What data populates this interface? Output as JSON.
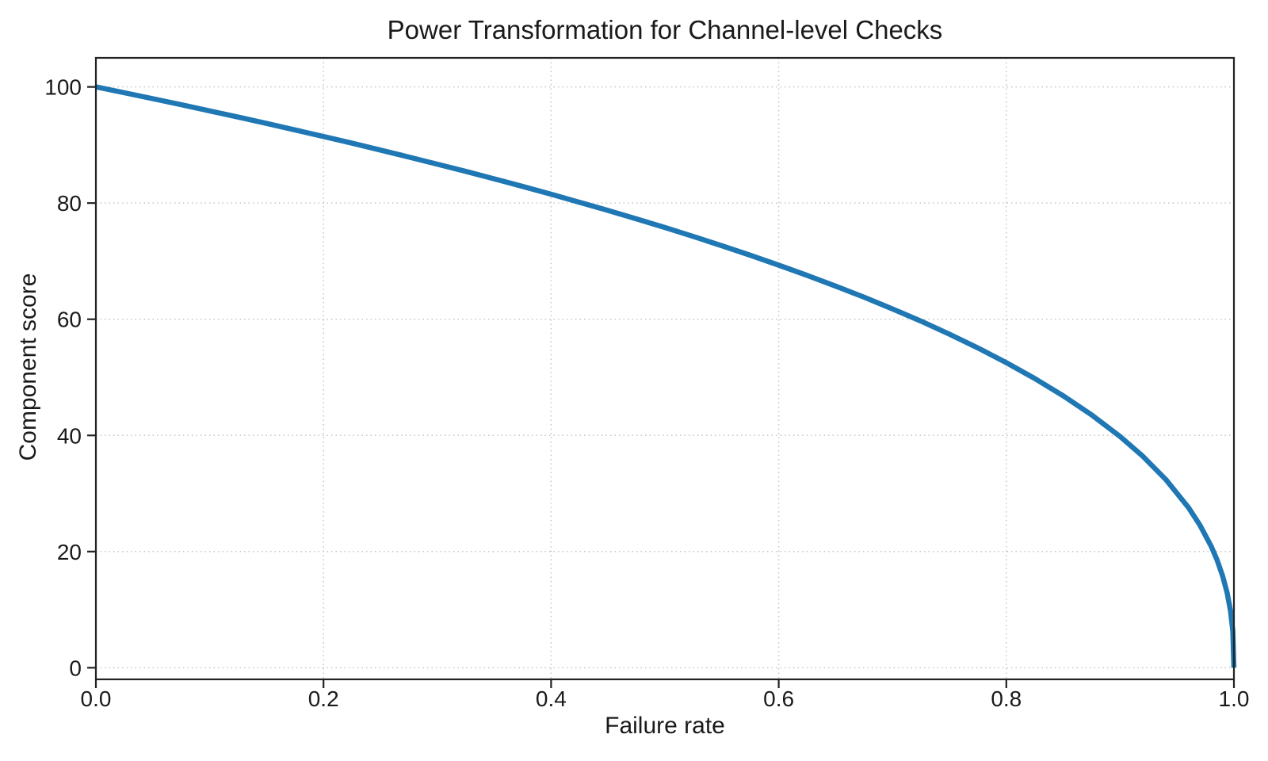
{
  "colors": {
    "background": "#ffffff",
    "text": "#1a1a1a",
    "axis": "#222222",
    "grid": "#c6c6c6",
    "line": "#1f77b4"
  },
  "chart_data": {
    "type": "line",
    "title": "Power Transformation for Channel-level Checks",
    "xlabel": "Failure rate",
    "ylabel": "Component score",
    "xlim": [
      0.0,
      1.0
    ],
    "ylim": [
      -2,
      105
    ],
    "xticks": [
      0.0,
      0.2,
      0.4,
      0.6,
      0.8,
      1.0
    ],
    "xtick_labels": [
      "0.0",
      "0.2",
      "0.4",
      "0.6",
      "0.8",
      "1.0"
    ],
    "yticks": [
      0,
      20,
      40,
      60,
      80,
      100
    ],
    "ytick_labels": [
      "0",
      "20",
      "40",
      "60",
      "80",
      "100"
    ],
    "grid": {
      "visible": true,
      "style": "dotted",
      "color": "#c6c6c6"
    },
    "legend": {
      "visible": false
    },
    "series": [
      {
        "name": "curve",
        "color": "#1f77b4",
        "line_width": 6.5,
        "x": [
          0,
          0.025,
          0.05,
          0.075,
          0.1,
          0.125,
          0.15,
          0.175,
          0.2,
          0.225,
          0.25,
          0.275,
          0.3,
          0.325,
          0.35,
          0.375,
          0.4,
          0.425,
          0.45,
          0.475,
          0.5,
          0.525,
          0.55,
          0.575,
          0.6,
          0.625,
          0.65,
          0.675,
          0.7,
          0.725,
          0.75,
          0.775,
          0.8,
          0.825,
          0.85,
          0.875,
          0.9,
          0.92,
          0.94,
          0.96,
          0.97,
          0.98,
          0.985,
          0.99,
          0.994,
          0.997,
          0.999,
          1.0
        ],
        "y": [
          100,
          98.99,
          97.97,
          96.93,
          95.87,
          94.8,
          93.71,
          92.59,
          91.46,
          90.31,
          89.13,
          87.93,
          86.7,
          85.45,
          84.17,
          82.86,
          81.52,
          80.14,
          78.73,
          77.28,
          75.79,
          74.25,
          72.66,
          71.02,
          69.31,
          67.55,
          65.71,
          63.79,
          61.78,
          59.67,
          57.43,
          55.06,
          52.53,
          49.8,
          46.82,
          43.53,
          39.81,
          36.41,
          32.45,
          27.59,
          24.6,
          20.91,
          18.64,
          15.85,
          12.92,
          9.79,
          6.31,
          0
        ]
      }
    ]
  }
}
